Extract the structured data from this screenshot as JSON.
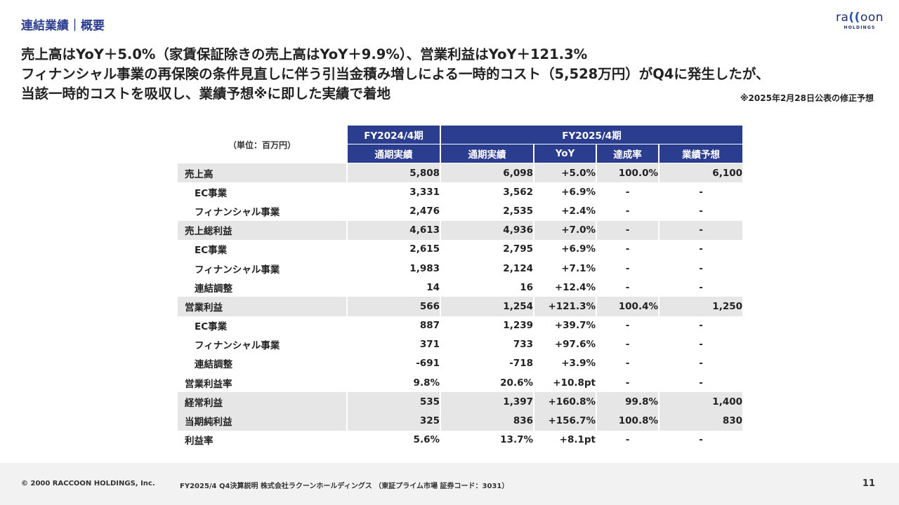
{
  "header": {
    "section_title": "連結業績｜概要",
    "logo_text_pre": "ra",
    "logo_paren": "((",
    "logo_text_post": "oon",
    "logo_sub": "HOLDINGS"
  },
  "headline": {
    "line1": "売上高はYoY＋5.0%（家賃保証除きの売上高はYoY＋9.9%）、営業利益はYoY＋121.3%",
    "line2": "フィナンシャル事業の再保険の条件見直しに伴う引当金積み増しによる一時的コスト（5,528万円）がQ4に発生したが、",
    "line3": "当該一時的コストを吸収し、業績予想※に即した実績で着地",
    "note": "※2025年2月28日公表の修正予想"
  },
  "table": {
    "unit_label": "（単位：百万円）",
    "fy2024_header": "FY2024/4期",
    "fy2025_header": "FY2025/4期",
    "columns": [
      "通期実績",
      "通期実績",
      "YoY",
      "達成率",
      "業績予想"
    ],
    "rows": [
      {
        "label": "売上高",
        "fy24": "5,808",
        "fy25": "6,098",
        "yoy": "+5.0%",
        "rate": "100.0%",
        "forecast": "6,100"
      },
      {
        "label": "EC事業",
        "fy24": "3,331",
        "fy25": "3,562",
        "yoy": "+6.9%",
        "rate": "-",
        "forecast": "-"
      },
      {
        "label": "フィナンシャル事業",
        "fy24": "2,476",
        "fy25": "2,535",
        "yoy": "+2.4%",
        "rate": "-",
        "forecast": "-"
      },
      {
        "label": "売上総利益",
        "fy24": "4,613",
        "fy25": "4,936",
        "yoy": "+7.0%",
        "rate": "-",
        "forecast": "-"
      },
      {
        "label": "EC事業",
        "fy24": "2,615",
        "fy25": "2,795",
        "yoy": "+6.9%",
        "rate": "-",
        "forecast": "-"
      },
      {
        "label": "フィナンシャル事業",
        "fy24": "1,983",
        "fy25": "2,124",
        "yoy": "+7.1%",
        "rate": "-",
        "forecast": "-"
      },
      {
        "label": "連結調整",
        "fy24": "14",
        "fy25": "16",
        "yoy": "+12.4%",
        "rate": "-",
        "forecast": "-"
      },
      {
        "label": "営業利益",
        "fy24": "566",
        "fy25": "1,254",
        "yoy": "+121.3%",
        "rate": "100.4%",
        "forecast": "1,250"
      },
      {
        "label": "EC事業",
        "fy24": "887",
        "fy25": "1,239",
        "yoy": "+39.7%",
        "rate": "-",
        "forecast": "-"
      },
      {
        "label": "フィナンシャル事業",
        "fy24": "371",
        "fy25": "733",
        "yoy": "+97.6%",
        "rate": "-",
        "forecast": "-"
      },
      {
        "label": "連結調整",
        "fy24": "-691",
        "fy25": "-718",
        "yoy": "+3.9%",
        "rate": "-",
        "forecast": "-"
      },
      {
        "label": "営業利益率",
        "fy24": "9.8%",
        "fy25": "20.6%",
        "yoy": "+10.8pt",
        "rate": "-",
        "forecast": "-"
      },
      {
        "label": "経常利益",
        "fy24": "535",
        "fy25": "1,397",
        "yoy": "+160.8%",
        "rate": "99.8%",
        "forecast": "1,400"
      },
      {
        "label": "当期純利益",
        "fy24": "325",
        "fy25": "836",
        "yoy": "+156.7%",
        "rate": "100.8%",
        "forecast": "830"
      },
      {
        "label": "利益率",
        "fy24": "5.6%",
        "fy25": "13.7%",
        "yoy": "+8.1pt",
        "rate": "-",
        "forecast": "-"
      }
    ]
  },
  "footer": {
    "copyright": "© 2000 RACCOON HOLDINGS, Inc.",
    "description": "FY2025/4 Q4決算説明 株式会社ラクーンホールディングス （東証プライム市場 証券コード：3031）",
    "page_number": "11"
  },
  "colors": {
    "accent": "#2b3d8f",
    "row_shade": "#e6e6e6",
    "footer_bg": "#f2f2f2"
  }
}
